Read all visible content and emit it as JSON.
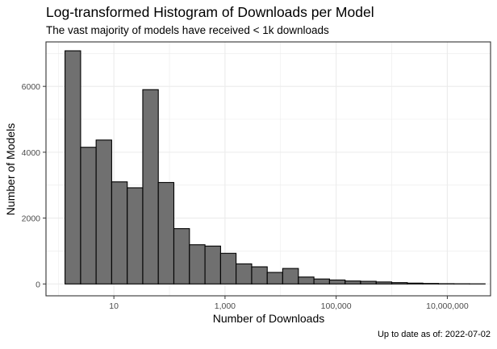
{
  "chart_data": {
    "type": "bar",
    "title": "Log-transformed Histogram of Downloads per Model",
    "subtitle": "The vast majority of models have received < 1k downloads",
    "xlabel": "Number of Downloads",
    "ylabel": "Number of Models",
    "caption": "Up to date as of: 2022-07-02",
    "x_scale": "log10",
    "xlim": [
      0.6,
      60000000
    ],
    "ylim": [
      -360,
      7350
    ],
    "x_ticks": [
      10,
      1000,
      100000,
      10000000
    ],
    "x_tick_labels": [
      "10",
      "1,000",
      "100,000",
      "10,000,000"
    ],
    "y_ticks": [
      0,
      2000,
      4000,
      6000
    ],
    "y_tick_labels": [
      "0",
      "2000",
      "4000",
      "6000"
    ],
    "grid": true,
    "bin_edges": [
      1.32,
      2.52,
      4.79,
      9.12,
      17.4,
      33.1,
      63.0,
      120,
      229,
      436,
      832,
      1580,
      3020,
      5750,
      10900,
      20900,
      39800,
      75900,
      145000,
      275000,
      525000,
      1000000,
      1910000,
      3630000,
      6920000,
      13200000,
      25100000,
      47900000
    ],
    "values": [
      7080,
      4150,
      4370,
      3100,
      2920,
      5900,
      3080,
      1680,
      1190,
      1150,
      930,
      610,
      520,
      350,
      470,
      210,
      150,
      120,
      90,
      80,
      60,
      40,
      25,
      15,
      8,
      5,
      3
    ],
    "bar_fill": "#707070",
    "bar_stroke": "#000000",
    "grid_color": "#ebebeb"
  }
}
